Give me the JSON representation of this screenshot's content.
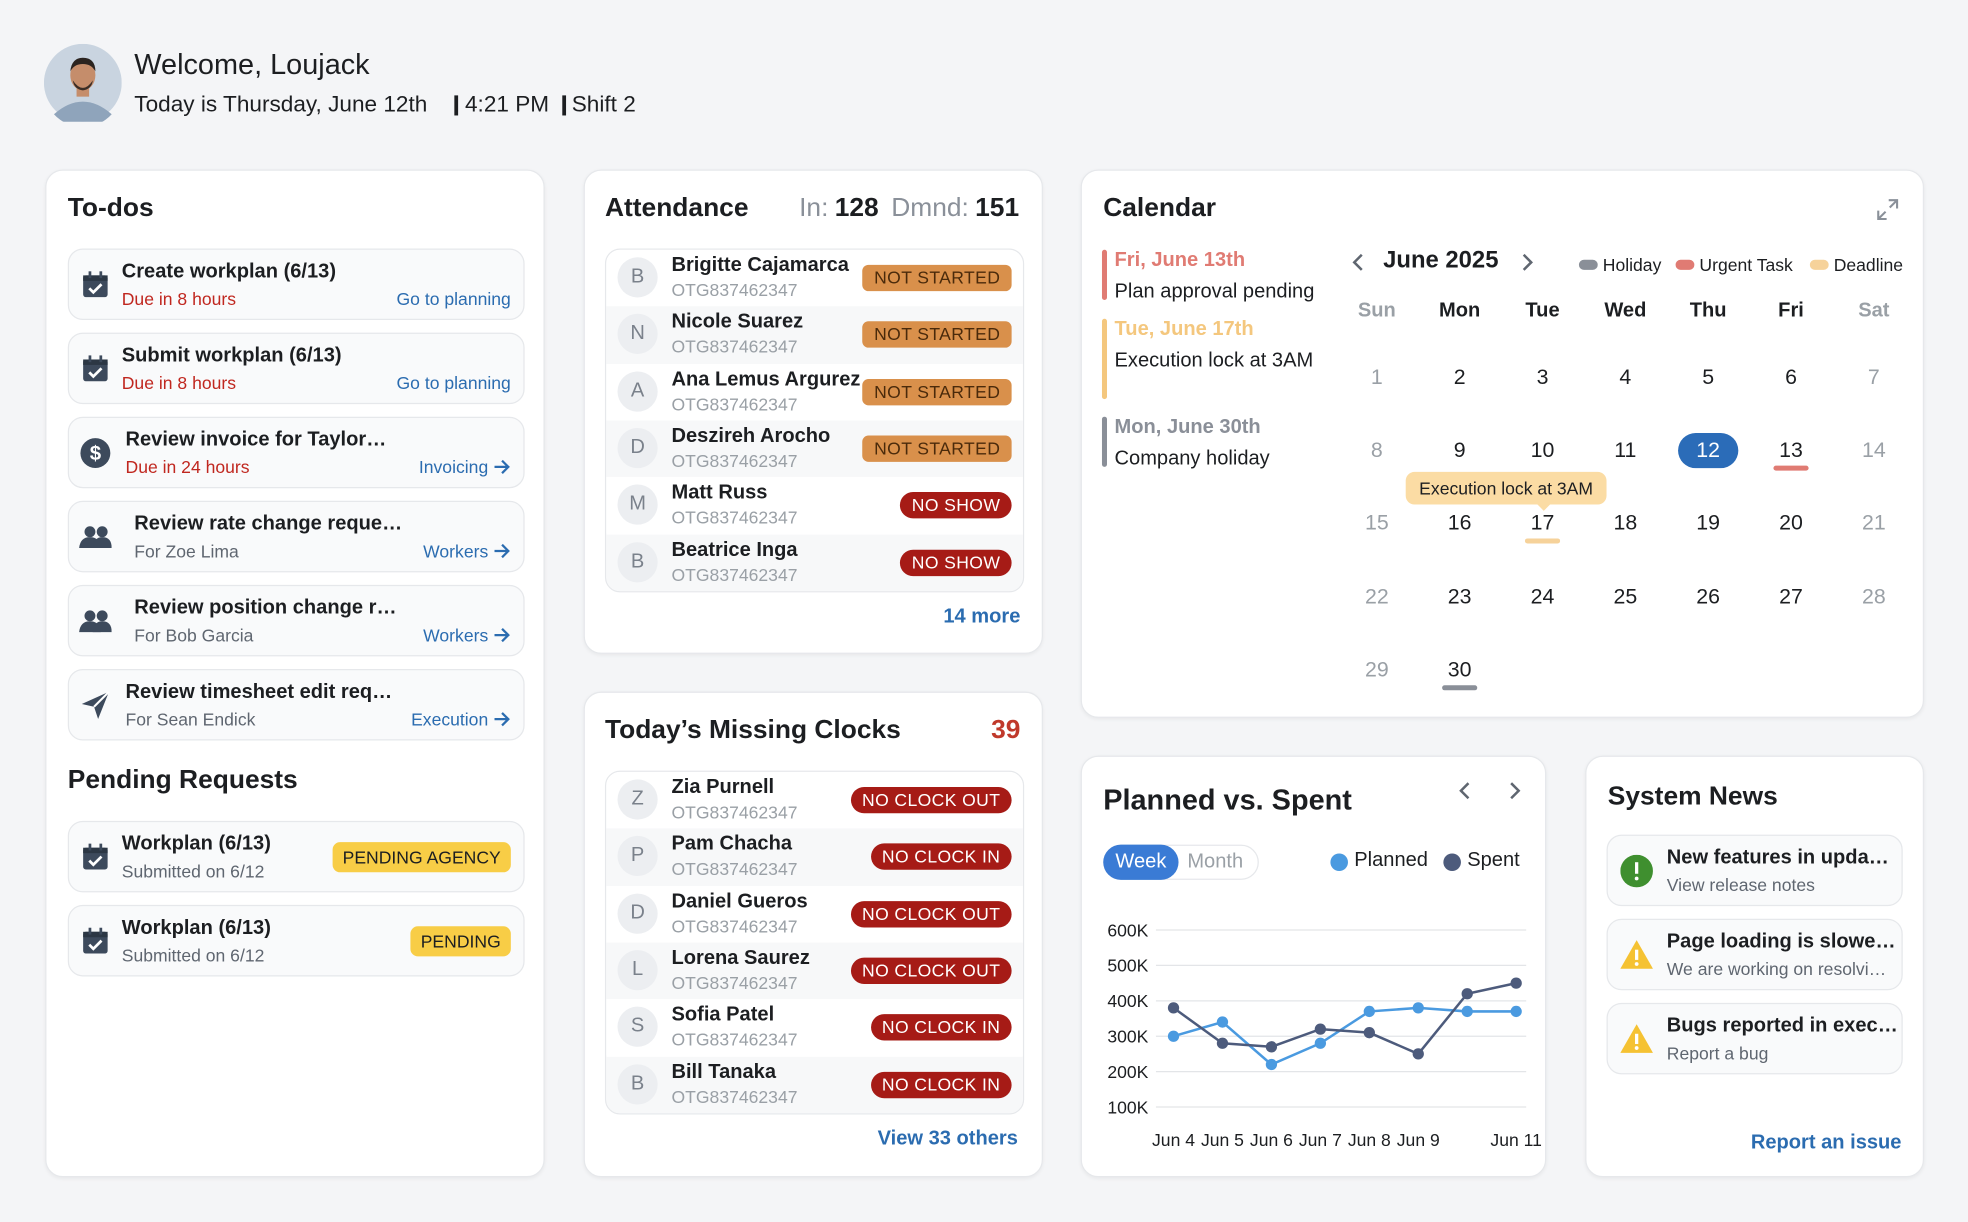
{
  "header": {
    "welcome": "Welcome, Loujack",
    "date": "Today is Thursday, June 12th",
    "time": "4:21 PM",
    "shift": "Shift 2"
  },
  "todos": {
    "title": "To-dos",
    "items": [
      {
        "title": "Create workplan (6/13)",
        "due": "Due in 8 hours",
        "link": "Go to planning"
      },
      {
        "title": "Submit workplan (6/13)",
        "due": "Due in 8 hours",
        "link": "Go to planning"
      },
      {
        "title": "Review invoice for Taylor…",
        "due": "Due in 24 hours",
        "link": "Invoicing"
      },
      {
        "title": "Review rate change reque…",
        "for": "For Zoe Lima",
        "link": "Workers"
      },
      {
        "title": "Review position change r…",
        "for": "For Bob Garcia",
        "link": "Workers"
      },
      {
        "title": "Review timesheet edit req…",
        "for": "For Sean Endick",
        "link": "Execution"
      }
    ]
  },
  "pending": {
    "title": "Pending Requests",
    "items": [
      {
        "title": "Workplan (6/13)",
        "sub": "Submitted on 6/12",
        "status": "PENDING AGENCY"
      },
      {
        "title": "Workplan (6/13)",
        "sub": "Submitted on 6/12",
        "status": "PENDING"
      }
    ]
  },
  "attendance": {
    "title": "Attendance",
    "in_label": "In:",
    "in": 128,
    "dmnd_label": "Dmnd:",
    "dmnd": 151,
    "rows": [
      {
        "initial": "B",
        "name": "Brigitte Cajamarca",
        "id": "OTG837462347",
        "status": "NOT STARTED",
        "color": "#d9904b"
      },
      {
        "initial": "N",
        "name": "Nicole Suarez",
        "id": "OTG837462347",
        "status": "NOT STARTED",
        "color": "#d9904b"
      },
      {
        "initial": "A",
        "name": "Ana Lemus Argurez",
        "id": "OTG837462347",
        "status": "NOT STARTED",
        "color": "#d9904b"
      },
      {
        "initial": "D",
        "name": "Deszireh Arocho",
        "id": "OTG837462347",
        "status": "NOT STARTED",
        "color": "#d9904b"
      },
      {
        "initial": "M",
        "name": "Matt Russ",
        "id": "OTG837462347",
        "status": "NO SHOW",
        "color": "#a61b16"
      },
      {
        "initial": "B",
        "name": "Beatrice Inga",
        "id": "OTG837462347",
        "status": "NO SHOW",
        "color": "#a61b16"
      }
    ],
    "more": "14 more"
  },
  "missing": {
    "title": "Today’s Missing Clocks",
    "count": 39,
    "rows": [
      {
        "initial": "Z",
        "name": "Zia Purnell",
        "id": "OTG837462347",
        "status": "NO CLOCK OUT",
        "color": "#a61b16"
      },
      {
        "initial": "P",
        "name": "Pam Chacha",
        "id": "OTG837462347",
        "status": "NO CLOCK IN",
        "color": "#a61b16"
      },
      {
        "initial": "D",
        "name": "Daniel Gueros",
        "id": "OTG837462347",
        "status": "NO CLOCK OUT",
        "color": "#a61b16"
      },
      {
        "initial": "L",
        "name": "Lorena Saurez",
        "id": "OTG837462347",
        "status": "NO CLOCK OUT",
        "color": "#a61b16"
      },
      {
        "initial": "S",
        "name": "Sofia Patel",
        "id": "OTG837462347",
        "status": "NO CLOCK IN",
        "color": "#a61b16"
      },
      {
        "initial": "B",
        "name": "Bill Tanaka",
        "id": "OTG837462347",
        "status": "NO CLOCK IN",
        "color": "#a61b16"
      }
    ],
    "more": "View 33 others"
  },
  "calendar": {
    "title": "Calendar",
    "month": "June 2025",
    "events": [
      {
        "date": "Fri, June 13th",
        "text": "Plan approval pending",
        "color": "#e07b73"
      },
      {
        "date": "Tue, June 17th",
        "text": "Execution lock at 3AM",
        "color": "#f4c77e"
      },
      {
        "date": "Mon, June 30th",
        "text": "Company holiday",
        "color": "#8a8f98"
      }
    ],
    "legend": [
      {
        "name": "Holiday",
        "color": "#8a8f98"
      },
      {
        "name": "Urgent Task",
        "color": "#e07b73"
      },
      {
        "name": "Deadline",
        "color": "#f6d29a"
      }
    ],
    "weekdays": [
      "Sun",
      "Mon",
      "Tue",
      "Wed",
      "Thu",
      "Fri",
      "Sat"
    ],
    "weeks": [
      [
        {
          "day": 1
        },
        {
          "day": 2
        },
        {
          "day": 3
        },
        {
          "day": 4
        },
        {
          "day": 5
        },
        {
          "day": 6
        },
        {
          "day": 7
        }
      ],
      [
        {
          "day": 8
        },
        {
          "day": 9
        },
        {
          "day": 10
        },
        {
          "day": 11
        },
        {
          "day": 12,
          "selected": true
        },
        {
          "day": 13,
          "underline": "#e07b73"
        },
        {
          "day": 14
        }
      ],
      [
        {
          "day": 15
        },
        {
          "day": 16
        },
        {
          "day": 17,
          "underline": "#f6d29a"
        },
        {
          "day": 18
        },
        {
          "day": 19
        },
        {
          "day": 20
        },
        {
          "day": 21
        }
      ],
      [
        {
          "day": 22
        },
        {
          "day": 23
        },
        {
          "day": 24
        },
        {
          "day": 25
        },
        {
          "day": 26
        },
        {
          "day": 27
        },
        {
          "day": 28
        }
      ],
      [
        {
          "day": 29
        },
        {
          "day": 30,
          "underline": "#8a8f98"
        }
      ]
    ],
    "tooltip": "Execution lock at 3AM"
  },
  "chart_data": {
    "type": "line",
    "title": "Planned vs. Spent",
    "toggle": [
      "Week",
      "Month"
    ],
    "categories": [
      "Jun 4",
      "Jun 5",
      "Jun 6",
      "Jun 7",
      "Jun 8",
      "Jun 9",
      null,
      "Jun 11"
    ],
    "series": [
      {
        "name": "Planned",
        "color": "#4a9ae0",
        "values": [
          300000,
          340000,
          220000,
          280000,
          370000,
          380000,
          370000,
          370000
        ]
      },
      {
        "name": "Spent",
        "color": "#4d5b7c",
        "values": [
          380000,
          280000,
          270000,
          320000,
          310000,
          250000,
          420000,
          450000
        ]
      }
    ],
    "ylim": [
      100000,
      600000
    ],
    "yticks": [
      {
        "value": 100000,
        "label": "100K"
      },
      {
        "value": 200000,
        "label": "200K"
      },
      {
        "value": 300000,
        "label": "300K"
      },
      {
        "value": 400000,
        "label": "400K"
      },
      {
        "value": 500000,
        "label": "500K"
      },
      {
        "value": 600000,
        "label": "600K"
      }
    ],
    "grid": true
  },
  "news": {
    "title": "System News",
    "items": [
      {
        "title": "New features in upda…",
        "sub": "View release notes"
      },
      {
        "title": "Page loading is slowe…",
        "sub": "We are working on resolvi…"
      },
      {
        "title": "Bugs reported in exec…",
        "sub": "Report a bug"
      }
    ],
    "link": "Report an issue"
  }
}
